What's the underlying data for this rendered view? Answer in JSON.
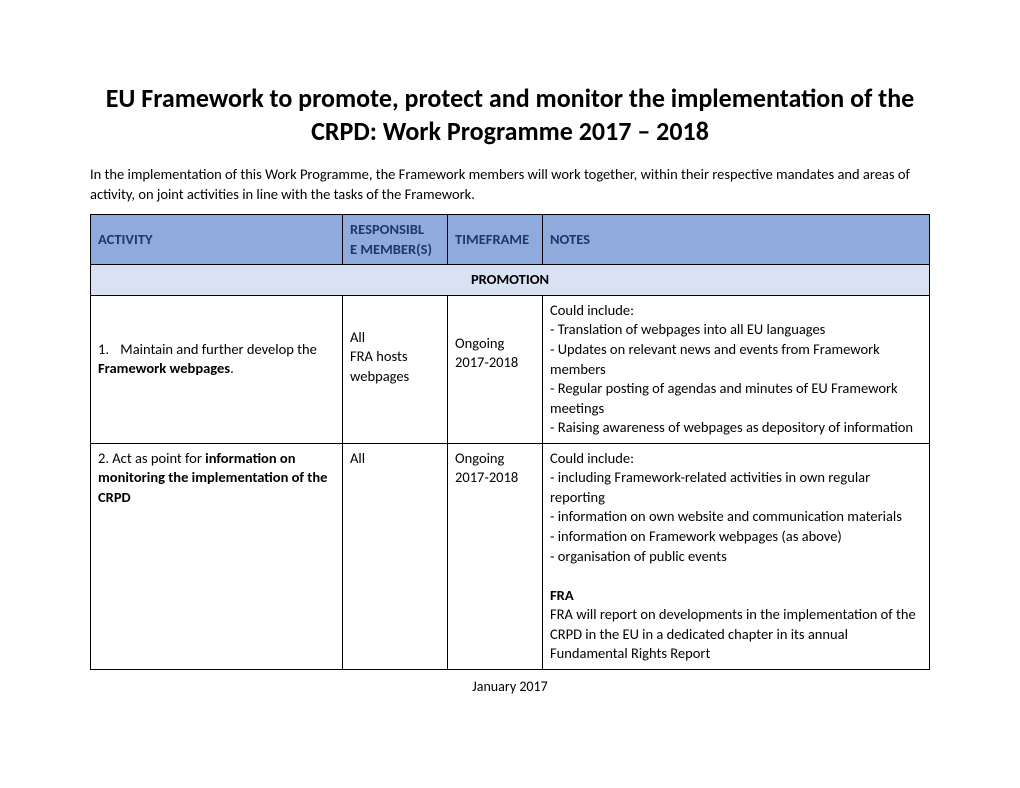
{
  "title": "EU Framework to promote, protect and monitor the implementation of the CRPD: Work Programme 2017 – 2018",
  "intro": "In the implementation of this Work Programme, the Framework members will work together, within their respective mandates and areas of activity, on joint activities in line with the tasks of the Framework.",
  "headers": {
    "activity": "ACTIVITY",
    "responsible": "RESPONSIBL\nE MEMBER(S)",
    "timeframe": "TIMEFRAME",
    "notes": "NOTES"
  },
  "section": "PROMOTION",
  "rows": [
    {
      "num": "1.",
      "activity_pre": "Maintain and further develop the ",
      "activity_bold": "Framework webpages",
      "activity_post": ".",
      "responsible": "All\nFRA hosts webpages",
      "timeframe": "Ongoing 2017-2018",
      "notes_intro": "Could include:",
      "notes_items": [
        "- Translation of webpages into all EU languages",
        "- Updates on relevant news and events from Framework members",
        "- Regular posting of agendas and minutes of EU Framework meetings",
        "- Raising awareness of webpages as depository of information"
      ]
    },
    {
      "num": "2.",
      "activity_pre": "Act as point for ",
      "activity_bold": "information on monitoring the implementation of the CRPD",
      "activity_post": "",
      "responsible": "All",
      "timeframe": "Ongoing 2017-2018",
      "notes_intro": "Could include:",
      "notes_items": [
        "- including Framework-related activities in own regular reporting",
        "- information on own website and communication materials",
        "- information on Framework webpages (as above)",
        "- organisation of public events"
      ],
      "extra_bold": "FRA",
      "extra_text": "FRA will report on developments in the implementation of the CRPD in the EU in a dedicated chapter in its annual Fundamental Rights Report"
    }
  ],
  "footer": "January 2017",
  "colors": {
    "header_bg": "#8faadc",
    "header_text": "#1f3864",
    "section_bg": "#d9e2f3",
    "border": "#000000"
  }
}
